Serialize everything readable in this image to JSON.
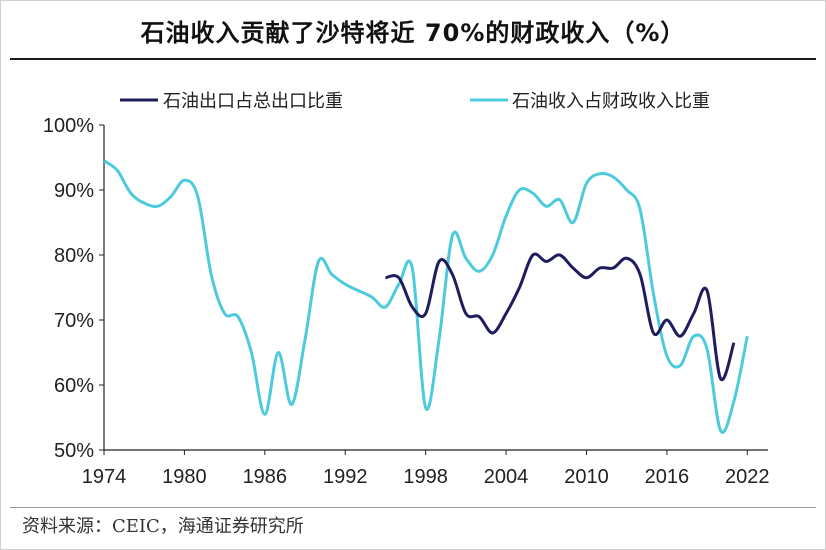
{
  "title": "石油收入贡献了沙特将近 70%的财政收入（%）",
  "source": "资料来源：CEIC，海通证券研究所",
  "chart_data": {
    "type": "line",
    "x_ticks": [
      1974,
      1980,
      1986,
      1992,
      1998,
      2004,
      2010,
      2016,
      2022
    ],
    "y_ticks": [
      50,
      60,
      70,
      80,
      90,
      100
    ],
    "y_tick_labels": [
      "50%",
      "60%",
      "70%",
      "80%",
      "90%",
      "100%"
    ],
    "xlim": [
      1974,
      2022.5
    ],
    "ylim": [
      50,
      100
    ],
    "legend_position": "top",
    "series": [
      {
        "name": "石油出口占总出口比重",
        "color": "#1f1d5e",
        "x": [
          1995,
          1996,
          1997,
          1998,
          1999,
          2000,
          2001,
          2002,
          2003,
          2004,
          2005,
          2006,
          2007,
          2008,
          2009,
          2010,
          2011,
          2012,
          2013,
          2014,
          2015,
          2016,
          2017,
          2018,
          2019,
          2020,
          2021
        ],
        "y": [
          76.5,
          76.5,
          72,
          71,
          79,
          77,
          71,
          70.5,
          68,
          71,
          75,
          80,
          79,
          80,
          78,
          76.5,
          78,
          78,
          79.5,
          77,
          68,
          70,
          67.5,
          71,
          74.5,
          61,
          66.5
        ]
      },
      {
        "name": "石油收入占财政收入比重",
        "color": "#4ecadd",
        "x": [
          1974,
          1975,
          1976,
          1977,
          1978,
          1979,
          1980,
          1981,
          1982,
          1983,
          1984,
          1985,
          1986,
          1987,
          1988,
          1989,
          1990,
          1991,
          1992,
          1993,
          1994,
          1995,
          1996,
          1997,
          1998,
          1999,
          2000,
          2001,
          2002,
          2003,
          2004,
          2005,
          2006,
          2007,
          2008,
          2009,
          2010,
          2011,
          2012,
          2013,
          2014,
          2015,
          2016,
          2017,
          2018,
          2019,
          2020,
          2021,
          2022
        ],
        "y": [
          94.5,
          93,
          89.5,
          88,
          87.5,
          89,
          91.5,
          89,
          77,
          71,
          70.5,
          65,
          55.5,
          65,
          57,
          67,
          79,
          77,
          75.5,
          74.5,
          73.5,
          72,
          75.5,
          78,
          56.5,
          67,
          83,
          79.5,
          77.5,
          80,
          86,
          90,
          89.5,
          87.5,
          88.5,
          85,
          91,
          92.5,
          92,
          90,
          87,
          74,
          64.5,
          63,
          67.5,
          65.5,
          53,
          57.5,
          67.5
        ]
      }
    ]
  }
}
